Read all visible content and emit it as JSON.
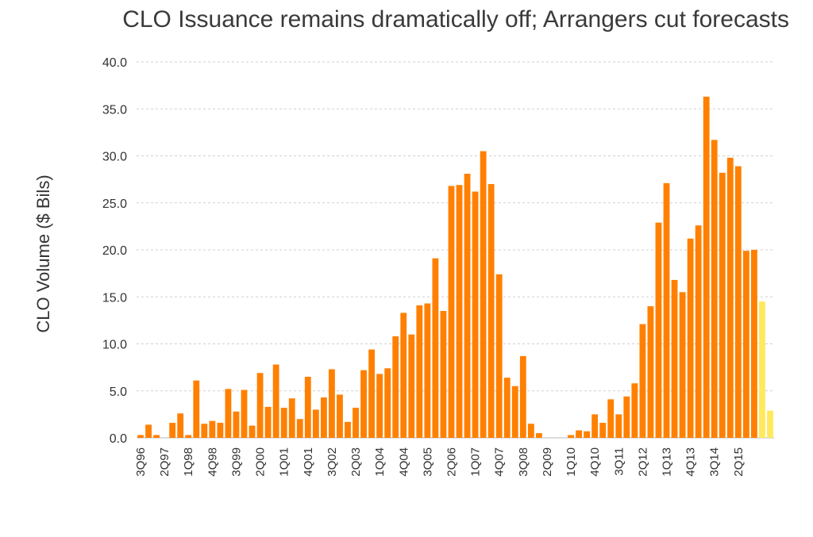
{
  "chart_data": {
    "type": "bar",
    "title": "CLO Issuance remains dramatically off; Arrangers cut forecasts",
    "ylabel": "CLO Volume ($ Bils)",
    "xlabel": "",
    "ylim": [
      0,
      40
    ],
    "yticks": [
      "0.0",
      "5.0",
      "10.0",
      "15.0",
      "20.0",
      "25.0",
      "30.0",
      "35.0",
      "40.0"
    ],
    "grid": true,
    "categories": [
      "3Q96",
      "4Q96",
      "1Q97",
      "2Q97",
      "3Q97",
      "4Q97",
      "1Q98",
      "2Q98",
      "3Q98",
      "4Q98",
      "1Q99",
      "2Q99",
      "3Q99",
      "4Q99",
      "1Q00",
      "2Q00",
      "3Q00",
      "4Q00",
      "1Q01",
      "2Q01",
      "3Q01",
      "4Q01",
      "1Q02",
      "2Q02",
      "3Q02",
      "4Q02",
      "1Q03",
      "2Q03",
      "3Q03",
      "4Q03",
      "1Q04",
      "2Q04",
      "3Q04",
      "4Q04",
      "1Q05",
      "2Q05",
      "3Q05",
      "4Q05",
      "1Q06",
      "2Q06",
      "3Q06",
      "4Q06",
      "1Q07",
      "2Q07",
      "3Q07",
      "4Q07",
      "1Q08",
      "2Q08",
      "3Q08",
      "4Q08",
      "1Q09",
      "2Q09",
      "3Q09",
      "4Q09",
      "1Q10",
      "2Q10",
      "3Q10",
      "4Q10",
      "1Q11",
      "2Q11",
      "3Q11",
      "4Q11",
      "1Q12",
      "2Q12",
      "3Q12",
      "4Q12",
      "1Q13",
      "2Q13",
      "3Q13",
      "4Q13",
      "1Q14",
      "2Q14",
      "3Q14",
      "4Q14",
      "1Q15",
      "2Q15",
      "3Q15",
      "4Q15",
      "f1",
      "f2"
    ],
    "tick_labels": [
      "3Q96",
      "",
      "",
      "2Q97",
      "",
      "",
      "1Q98",
      "",
      "",
      "4Q98",
      "",
      "",
      "3Q99",
      "",
      "",
      "2Q00",
      "",
      "",
      "1Q01",
      "",
      "",
      "4Q01",
      "",
      "",
      "3Q02",
      "",
      "",
      "2Q03",
      "",
      "",
      "1Q04",
      "",
      "",
      "4Q04",
      "",
      "",
      "3Q05",
      "",
      "",
      "2Q06",
      "",
      "",
      "1Q07",
      "",
      "",
      "4Q07",
      "",
      "",
      "3Q08",
      "",
      "",
      "2Q09",
      "",
      "",
      "1Q10",
      "",
      "",
      "4Q10",
      "",
      "",
      "3Q11",
      "",
      "",
      "2Q12",
      "",
      "",
      "1Q13",
      "",
      "",
      "4Q13",
      "",
      "",
      "3Q14",
      "",
      "",
      "2Q15",
      "",
      "",
      "",
      "",
      "",
      ""
    ],
    "series": [
      {
        "color": "#ff8000",
        "values": [
          0.3,
          1.4,
          0.3,
          0,
          1.6,
          2.6,
          0.3,
          6.1,
          1.5,
          1.8,
          1.6,
          5.2,
          2.8,
          5.1,
          1.3,
          6.9,
          3.3,
          7.8,
          3.2,
          4.2,
          2.0,
          6.5,
          3.0,
          4.3,
          7.3,
          4.6,
          1.7,
          3.2,
          7.2,
          9.4,
          6.8,
          7.4,
          10.8,
          13.3,
          11.0,
          14.1,
          14.3,
          19.1,
          13.5,
          26.8,
          26.9,
          28.1,
          26.2,
          30.5,
          27.0,
          17.4,
          6.4,
          5.5,
          8.7,
          1.5,
          0.5,
          0,
          0,
          0,
          0.3,
          0.8,
          0.7,
          2.5,
          1.6,
          4.1,
          2.5,
          4.4,
          5.8,
          12.1,
          14.0,
          22.9,
          27.1,
          16.8,
          15.5,
          21.2,
          22.6,
          36.3,
          31.7,
          28.2,
          29.8,
          28.9,
          19.9,
          20.0,
          null,
          null
        ]
      },
      {
        "color": "#ffe95c",
        "values": [
          null,
          null,
          null,
          null,
          null,
          null,
          null,
          null,
          null,
          null,
          null,
          null,
          null,
          null,
          null,
          null,
          null,
          null,
          null,
          null,
          null,
          null,
          null,
          null,
          null,
          null,
          null,
          null,
          null,
          null,
          null,
          null,
          null,
          null,
          null,
          null,
          null,
          null,
          null,
          null,
          null,
          null,
          null,
          null,
          null,
          null,
          null,
          null,
          null,
          null,
          null,
          null,
          null,
          null,
          null,
          null,
          null,
          null,
          null,
          null,
          null,
          null,
          null,
          null,
          null,
          null,
          null,
          null,
          null,
          null,
          null,
          null,
          null,
          null,
          null,
          null,
          null,
          null,
          14.5,
          2.9
        ]
      }
    ]
  }
}
